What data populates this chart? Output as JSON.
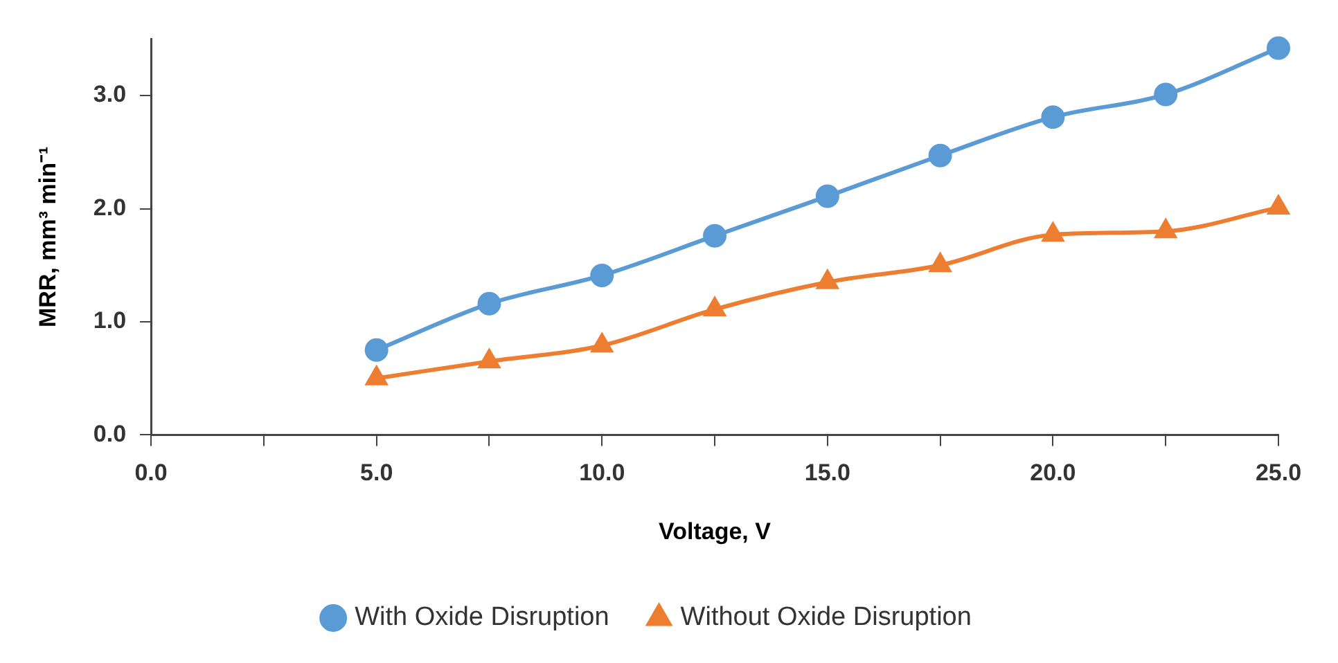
{
  "chart_data": {
    "type": "line",
    "xlabel": "Voltage, V",
    "ylabel": "MRR, mm³ min⁻¹",
    "x": [
      5,
      7.5,
      10,
      12.5,
      15,
      17.5,
      20,
      22.5,
      25
    ],
    "series": [
      {
        "name": "With Oxide Disruption",
        "color": "#5b9bd5",
        "marker": "circle",
        "values": [
          0.75,
          1.16,
          1.41,
          1.76,
          2.11,
          2.47,
          2.81,
          3.01,
          3.42
        ]
      },
      {
        "name": "Without Oxide Disruption",
        "color": "#ed7d31",
        "marker": "triangle",
        "values": [
          0.5,
          0.65,
          0.79,
          1.11,
          1.35,
          1.5,
          1.77,
          1.8,
          2.01
        ]
      }
    ],
    "xlim": [
      0,
      25
    ],
    "xticks": [
      {
        "value": 0,
        "label": "0.0"
      },
      {
        "value": 2.5,
        "label": null
      },
      {
        "value": 5,
        "label": "5.0"
      },
      {
        "value": 7.5,
        "label": null
      },
      {
        "value": 10,
        "label": "10.0"
      },
      {
        "value": 12.5,
        "label": null
      },
      {
        "value": 15,
        "label": "15.0"
      },
      {
        "value": 17.5,
        "label": null
      },
      {
        "value": 20,
        "label": "20.0"
      },
      {
        "value": 22.5,
        "label": null
      },
      {
        "value": 25,
        "label": "25.0"
      }
    ],
    "ylim": [
      0,
      3.5
    ],
    "yticks": [
      {
        "value": 0,
        "label": "0.0"
      },
      {
        "value": 1,
        "label": "1.0"
      },
      {
        "value": 2,
        "label": "2.0"
      },
      {
        "value": 3,
        "label": "3.0"
      }
    ],
    "grid": false,
    "legend": "bottom",
    "line_style": "solid"
  }
}
